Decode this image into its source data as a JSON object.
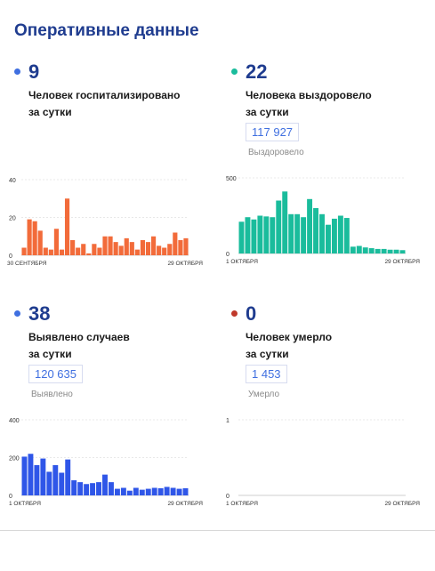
{
  "title": "Оперативные данные",
  "panels": [
    {
      "dot_color": "#3f6fe0",
      "number": "9",
      "label_line1": "Человек госпитализировано",
      "label_line2": "за сутки",
      "total": "",
      "total_caption": ""
    },
    {
      "dot_color": "#1abc9c",
      "number": "22",
      "label_line1": "Человека выздоровело",
      "label_line2": "за сутки",
      "total": "117 927",
      "total_caption": "Выздоровело"
    },
    {
      "dot_color": "#3f6fe0",
      "number": "38",
      "label_line1": "Выявлено случаев",
      "label_line2": "за сутки",
      "total": "120 635",
      "total_caption": "Выявлено"
    },
    {
      "dot_color": "#c0392b",
      "number": "0",
      "label_line1": "Человек умерло",
      "label_line2": "за сутки",
      "total": "1 453",
      "total_caption": "Умерло"
    }
  ],
  "chart_data": [
    {
      "type": "bar",
      "color": "#f26b3a",
      "x_start_label": "30 СЕНТЯБРЯ",
      "x_end_label": "29 ОКТЯБРЯ",
      "y_ticks": [
        0,
        20,
        40
      ],
      "ylim": [
        0,
        40
      ],
      "values": [
        4,
        19,
        18,
        13,
        4,
        3,
        14,
        3,
        30,
        8,
        4,
        6,
        1,
        6,
        4,
        10,
        10,
        7,
        5,
        9,
        7,
        3,
        8,
        7,
        10,
        5,
        4,
        6,
        12,
        8,
        9
      ]
    },
    {
      "type": "bar",
      "color": "#1abc9c",
      "x_start_label": "1 ОКТЯБРЯ",
      "x_end_label": "29 ОКТЯБРЯ",
      "y_ticks": [
        0,
        500
      ],
      "ylim": [
        0,
        500
      ],
      "values": [
        210,
        240,
        225,
        250,
        245,
        240,
        350,
        410,
        260,
        260,
        240,
        360,
        300,
        260,
        190,
        230,
        250,
        235,
        45,
        50,
        40,
        35,
        30,
        30,
        25,
        25,
        22
      ]
    },
    {
      "type": "bar",
      "color": "#2f56e8",
      "x_start_label": "1 ОКТЯБРЯ",
      "x_end_label": "29 ОКТЯБРЯ",
      "y_ticks": [
        0,
        200,
        400
      ],
      "ylim": [
        0,
        400
      ],
      "values": [
        205,
        220,
        160,
        195,
        125,
        160,
        120,
        190,
        80,
        70,
        60,
        65,
        70,
        110,
        70,
        35,
        40,
        25,
        40,
        30,
        35,
        40,
        38,
        45,
        40,
        35,
        38
      ]
    },
    {
      "type": "bar",
      "color": "#c0392b",
      "x_start_label": "1 ОКТЯБРЯ",
      "x_end_label": "29 ОКТЯБРЯ",
      "y_ticks": [
        0,
        1
      ],
      "ylim": [
        0,
        1
      ],
      "values": []
    }
  ]
}
